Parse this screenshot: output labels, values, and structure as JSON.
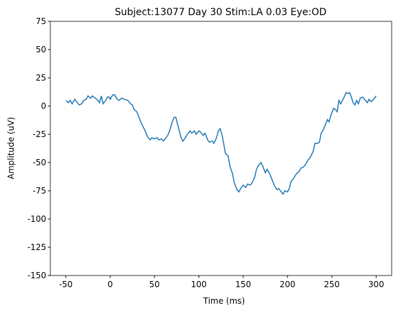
{
  "chart_data": {
    "type": "line",
    "title": "Subject:13077 Day 30 Stim:LA 0.03 Eye:OD",
    "x_label": "Time (ms)",
    "y_label": "Amplitude (uV)",
    "xlim": [
      -67.5,
      317.5
    ],
    "xticks": [
      -50,
      0,
      50,
      100,
      150,
      200,
      250,
      300
    ],
    "ylim": [
      -150,
      75
    ],
    "yticks": [
      -150,
      -125,
      -100,
      -75,
      -50,
      -25,
      0,
      25,
      50,
      75
    ],
    "series": [
      {
        "name": "Amplitude",
        "color": "#1f77b4",
        "x": [
          -50,
          -47,
          -45,
          -43,
          -40,
          -37,
          -35,
          -32,
          -30,
          -27,
          -25,
          -22,
          -20,
          -17,
          -15,
          -12,
          -10,
          -8,
          -5,
          -3,
          -1,
          0,
          3,
          5,
          7,
          10,
          13,
          16,
          20,
          23,
          25,
          27,
          30,
          32,
          35,
          37,
          40,
          42,
          45,
          47,
          50,
          53,
          55,
          58,
          60,
          62,
          65,
          67,
          70,
          72,
          74,
          76,
          78,
          80,
          82,
          84,
          87,
          90,
          92,
          95,
          97,
          100,
          102,
          105,
          107,
          110,
          112,
          115,
          117,
          120,
          122,
          124,
          126,
          128,
          130,
          133,
          135,
          138,
          140,
          143,
          145,
          148,
          150,
          153,
          155,
          158,
          160,
          163,
          165,
          167,
          170,
          172,
          175,
          177,
          180,
          183,
          185,
          188,
          190,
          193,
          195,
          197,
          200,
          202,
          204,
          207,
          210,
          213,
          215,
          218,
          220,
          223,
          226,
          229,
          231,
          234,
          236,
          238,
          241,
          243,
          245,
          247,
          249,
          252,
          254,
          256,
          258,
          260,
          262,
          264,
          266,
          268,
          270,
          272,
          274,
          276,
          278,
          280,
          282,
          285,
          288,
          290,
          292,
          294,
          296,
          298,
          300
        ],
        "values": [
          5,
          3,
          5,
          2,
          6,
          3,
          1,
          2,
          5,
          6,
          9,
          7,
          9,
          7,
          6,
          3,
          9,
          2,
          5,
          8,
          8,
          6,
          10,
          10,
          7,
          5,
          7,
          6,
          5,
          2,
          1,
          -3,
          -5,
          -9,
          -15,
          -18,
          -23,
          -27,
          -30,
          -28,
          -29,
          -28,
          -30,
          -29,
          -31,
          -29,
          -26,
          -22,
          -14,
          -10,
          -10,
          -16,
          -22,
          -28,
          -31,
          -29,
          -25,
          -22,
          -24,
          -22,
          -25,
          -22,
          -23,
          -26,
          -24,
          -30,
          -32,
          -31,
          -33,
          -28,
          -22,
          -20,
          -25,
          -33,
          -42,
          -44,
          -53,
          -60,
          -68,
          -74,
          -76,
          -72,
          -70,
          -72,
          -69,
          -70,
          -68,
          -63,
          -56,
          -53,
          -50,
          -53,
          -59,
          -56,
          -60,
          -66,
          -70,
          -74,
          -73,
          -76,
          -78,
          -75,
          -76,
          -73,
          -67,
          -64,
          -60,
          -58,
          -55,
          -54,
          -52,
          -48,
          -45,
          -40,
          -33,
          -33,
          -32,
          -24,
          -20,
          -16,
          -12,
          -14,
          -8,
          -2,
          -3,
          -5,
          5,
          2,
          5,
          8,
          12,
          11,
          12,
          8,
          3,
          1,
          5,
          2,
          7,
          8,
          5,
          3,
          6,
          4,
          5,
          7,
          9
        ]
      }
    ]
  }
}
